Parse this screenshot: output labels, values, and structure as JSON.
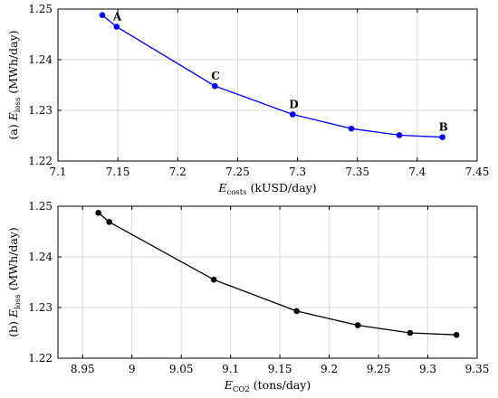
{
  "chart_data": [
    {
      "type": "line",
      "panel_prefix": "(a) ",
      "ylabel_main": "E",
      "ylabel_sub": "loss",
      "ylabel_unit": " (MWh/day)",
      "xlabel_main": "E",
      "xlabel_sub": "costs",
      "xlabel_unit": " (kUSD/day)",
      "xlim": [
        7.1,
        7.45
      ],
      "ylim": [
        1.22,
        1.25
      ],
      "xticks": [
        "7.1",
        "7.15",
        "7.2",
        "7.25",
        "7.3",
        "7.35",
        "7.4",
        "7.45"
      ],
      "yticks": [
        "1.22",
        "1.23",
        "1.24",
        "1.25"
      ],
      "grid": true,
      "color": "#0000ff",
      "series": [
        {
          "x": [
            7.137,
            7.149,
            7.231,
            7.296,
            7.345,
            7.385,
            7.421
          ],
          "y": [
            1.2488,
            1.2465,
            1.2348,
            1.2292,
            1.2264,
            1.2251,
            1.2247
          ]
        }
      ],
      "annotations": [
        {
          "label": "A",
          "point_index": 1
        },
        {
          "label": "C",
          "point_index": 2
        },
        {
          "label": "D",
          "point_index": 3
        },
        {
          "label": "B",
          "point_index": 6
        }
      ]
    },
    {
      "type": "line",
      "panel_prefix": "(b) ",
      "ylabel_main": "E",
      "ylabel_sub": "loss",
      "ylabel_unit": " (MWh/day)",
      "xlabel_main": "E",
      "xlabel_sub": "CO2",
      "xlabel_unit": " (tons/day)",
      "xlim": [
        8.925,
        9.35
      ],
      "ylim": [
        1.22,
        1.25
      ],
      "xticks": [
        "8.95",
        "9",
        "9.05",
        "9.1",
        "9.15",
        "9.2",
        "9.25",
        "9.3",
        "9.35"
      ],
      "yticks": [
        "1.22",
        "1.23",
        "1.24",
        "1.25"
      ],
      "grid": true,
      "color": "#000000",
      "series": [
        {
          "x": [
            8.966,
            8.977,
            9.083,
            9.167,
            9.229,
            9.282,
            9.329
          ],
          "y": [
            1.2487,
            1.2469,
            1.2355,
            1.2293,
            1.2265,
            1.225,
            1.2246
          ]
        }
      ],
      "annotations": []
    }
  ]
}
